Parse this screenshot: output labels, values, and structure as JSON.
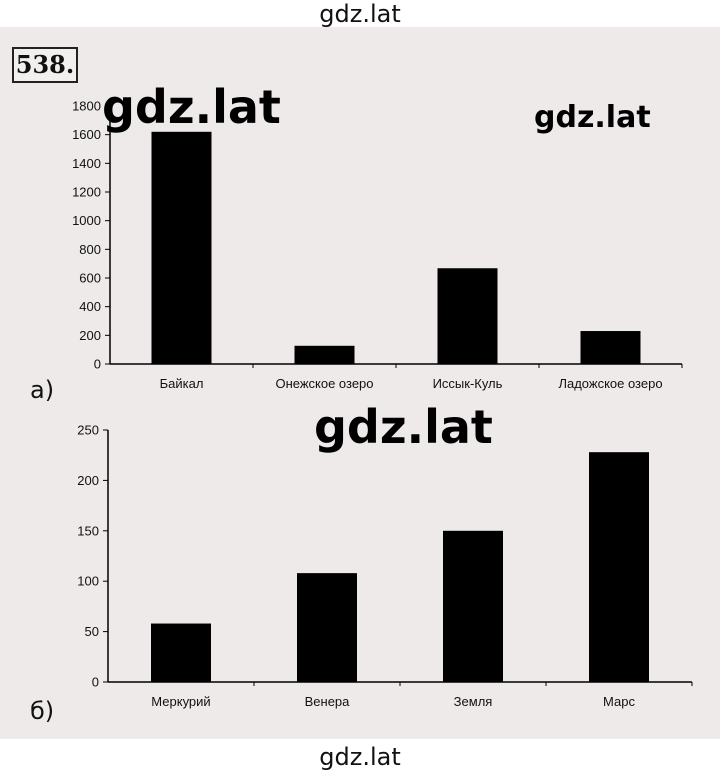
{
  "watermarks": {
    "top": "gdz.lat",
    "chart_a_large": "gdz.lat",
    "chart_a_small": "gdz.lat",
    "middle": "gdz.lat",
    "bottom": "gdz.lat"
  },
  "problem_number": "538.",
  "chart_data": [
    {
      "type": "bar",
      "panel_label": "а)",
      "categories": [
        "Байкал",
        "Онежское озеро",
        "Иссык-Куль",
        "Ладожское озеро"
      ],
      "values": [
        1620,
        127,
        668,
        230
      ],
      "ylim": [
        0,
        1800
      ],
      "yticks": [
        0,
        200,
        400,
        600,
        800,
        1000,
        1200,
        1400,
        1600,
        1800
      ],
      "bar_color": "#000000",
      "grid": false
    },
    {
      "type": "bar",
      "panel_label": "б)",
      "categories": [
        "Меркурий",
        "Венера",
        "Земля",
        "Марс"
      ],
      "values": [
        58,
        108,
        150,
        228
      ],
      "ylim": [
        0,
        250
      ],
      "yticks": [
        0,
        50,
        100,
        150,
        200,
        250
      ],
      "bar_color": "#000000",
      "grid": false
    }
  ]
}
